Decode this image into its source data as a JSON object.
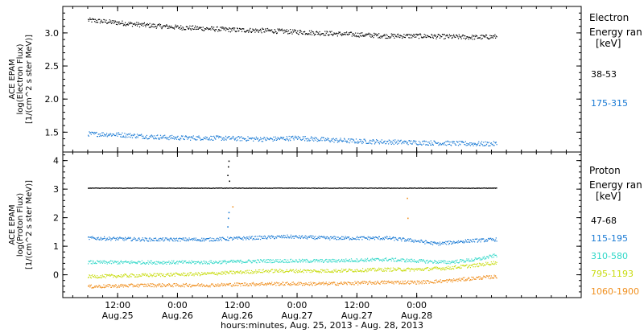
{
  "chart_data": [
    {
      "type": "scatter",
      "panel": "electron",
      "ylabel": "ACE EPAM",
      "ylabel_line2": "log(Electron Flux)",
      "ylabel_line3": "[1/(cm^2 s ster MeV)]",
      "ylim": [
        1.2,
        3.4
      ],
      "yticks": [
        "3.0",
        "2.5",
        "2.0",
        "1.5"
      ],
      "ytick_values": [
        3.0,
        2.5,
        2.0,
        1.5
      ],
      "legend_title": "Electron",
      "legend_subtitle": "Energy ran",
      "legend_unit": "[keV]",
      "series": [
        {
          "name": "38-53",
          "color": "#000000",
          "x_hours": [
            0,
            6,
            12,
            18,
            24,
            30,
            36,
            42,
            48,
            54,
            60,
            66,
            72,
            78,
            82
          ],
          "values": [
            3.2,
            3.16,
            3.12,
            3.09,
            3.07,
            3.05,
            3.04,
            3.02,
            3.0,
            2.98,
            2.96,
            2.96,
            2.95,
            2.94,
            2.95
          ]
        },
        {
          "name": "175-315",
          "color": "#1a7ad4",
          "x_hours": [
            0,
            6,
            12,
            18,
            24,
            30,
            36,
            42,
            48,
            54,
            60,
            66,
            72,
            78,
            82
          ],
          "values": [
            1.48,
            1.47,
            1.44,
            1.42,
            1.42,
            1.41,
            1.4,
            1.42,
            1.39,
            1.37,
            1.36,
            1.35,
            1.34,
            1.33,
            1.33
          ]
        }
      ]
    },
    {
      "type": "scatter",
      "panel": "proton",
      "ylabel": "ACE EPAM",
      "ylabel_line2": "log(Proton Flux)",
      "ylabel_line3": "[1/(cm^2 s ster MeV)]",
      "ylim": [
        -0.8,
        4.3
      ],
      "yticks": [
        "4",
        "3",
        "2",
        "1",
        "0"
      ],
      "ytick_values": [
        4,
        3,
        2,
        1,
        0
      ],
      "legend_title": "Proton",
      "legend_subtitle": "Energy ran",
      "legend_unit": "[keV]",
      "series": [
        {
          "name": "47-68",
          "color": "#000000",
          "x_hours": [
            0,
            12,
            24,
            30,
            36,
            48,
            60,
            72,
            82
          ],
          "values": [
            3.05,
            3.05,
            3.05,
            3.05,
            3.05,
            3.05,
            3.05,
            3.05,
            3.05
          ]
        },
        {
          "name": "115-195",
          "color": "#1a7ad4",
          "x_hours": [
            0,
            12,
            24,
            32,
            40,
            48,
            60,
            66,
            70,
            76,
            82
          ],
          "values": [
            1.3,
            1.25,
            1.25,
            1.3,
            1.35,
            1.3,
            1.3,
            1.2,
            1.1,
            1.2,
            1.25
          ]
        },
        {
          "name": "310-580",
          "color": "#30d8c8",
          "x_hours": [
            0,
            12,
            24,
            36,
            48,
            60,
            66,
            72,
            78,
            82
          ],
          "values": [
            0.45,
            0.45,
            0.45,
            0.5,
            0.5,
            0.55,
            0.5,
            0.45,
            0.55,
            0.7
          ]
        },
        {
          "name": "795-1193",
          "color": "#c8dc10",
          "x_hours": [
            0,
            12,
            24,
            36,
            48,
            60,
            66,
            72,
            78,
            82
          ],
          "values": [
            -0.05,
            0.0,
            0.05,
            0.15,
            0.15,
            0.2,
            0.2,
            0.25,
            0.35,
            0.45
          ]
        },
        {
          "name": "1060-1900",
          "color": "#f09020",
          "x_hours": [
            0,
            12,
            24,
            36,
            48,
            60,
            66,
            72,
            78,
            82
          ],
          "values": [
            -0.4,
            -0.35,
            -0.35,
            -0.3,
            -0.3,
            -0.25,
            -0.25,
            -0.2,
            -0.1,
            -0.05
          ]
        }
      ],
      "annotations": [
        {
          "series": "47-68",
          "x_hours": 28,
          "values": [
            3.5,
            3.8,
            4.0,
            3.3
          ]
        },
        {
          "series": "115-195",
          "x_hours": 28,
          "values": [
            1.7,
            2.0,
            2.2
          ]
        },
        {
          "series": "1060-1900",
          "x_hours": 29,
          "values": [
            2.4
          ]
        },
        {
          "series": "1060-1900",
          "x_hours": 64,
          "values": [
            2.7,
            2.0
          ]
        }
      ]
    }
  ],
  "xaxis": {
    "xlim_hours": [
      -5,
      99
    ],
    "ticks": [
      {
        "time": "12:00",
        "date": "Aug.25",
        "hours": 6
      },
      {
        "time": "0:00",
        "date": "Aug.26",
        "hours": 18
      },
      {
        "time": "12:00",
        "date": "Aug.26",
        "hours": 30
      },
      {
        "time": "0:00",
        "date": "Aug.27",
        "hours": 42
      },
      {
        "time": "12:00",
        "date": "Aug.27",
        "hours": 54
      },
      {
        "time": "0:00",
        "date": "Aug.28",
        "hours": 66
      }
    ],
    "label": "hours:minutes, Aug. 25, 2013 - Aug. 28, 2013"
  }
}
